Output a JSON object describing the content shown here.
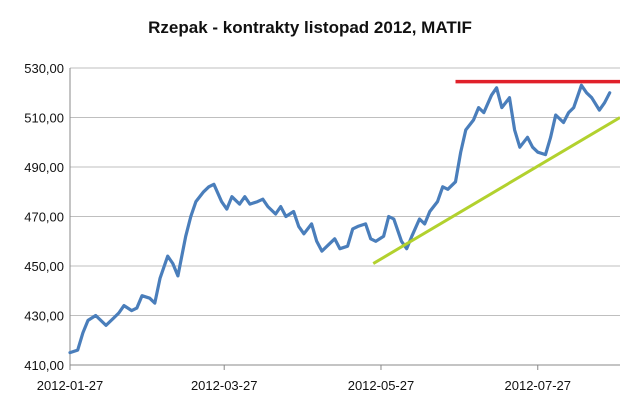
{
  "chart_data": {
    "type": "line",
    "title": "Rzepak - kontrakty listopad 2012, MATIF",
    "xlabel": "",
    "ylabel": "",
    "ylim": [
      410,
      530
    ],
    "yticks": [
      "410,00",
      "430,00",
      "450,00",
      "470,00",
      "490,00",
      "510,00",
      "530,00"
    ],
    "ytick_values": [
      410,
      430,
      450,
      470,
      490,
      510,
      530
    ],
    "xticks": [
      "2012-01-27",
      "2012-03-27",
      "2012-05-27",
      "2012-07-27"
    ],
    "xtick_dates": [
      "2012-01-27",
      "2012-03-27",
      "2012-05-27",
      "2012-07-27"
    ],
    "xlim": [
      "2012-01-27",
      "2012-08-28"
    ],
    "grid": "horizontal",
    "series": [
      {
        "color": "#4a7ebb",
        "points": [
          [
            "2012-01-27",
            415
          ],
          [
            "2012-01-30",
            416
          ],
          [
            "2012-02-01",
            423
          ],
          [
            "2012-02-03",
            428
          ],
          [
            "2012-02-06",
            430
          ],
          [
            "2012-02-08",
            428
          ],
          [
            "2012-02-10",
            426
          ],
          [
            "2012-02-13",
            429
          ],
          [
            "2012-02-15",
            431
          ],
          [
            "2012-02-17",
            434
          ],
          [
            "2012-02-20",
            432
          ],
          [
            "2012-02-22",
            433
          ],
          [
            "2012-02-24",
            438
          ],
          [
            "2012-02-27",
            437
          ],
          [
            "2012-02-29",
            435
          ],
          [
            "2012-03-02",
            445
          ],
          [
            "2012-03-05",
            454
          ],
          [
            "2012-03-07",
            451
          ],
          [
            "2012-03-09",
            446
          ],
          [
            "2012-03-12",
            462
          ],
          [
            "2012-03-14",
            470
          ],
          [
            "2012-03-16",
            476
          ],
          [
            "2012-03-19",
            480
          ],
          [
            "2012-03-21",
            482
          ],
          [
            "2012-03-23",
            483
          ],
          [
            "2012-03-26",
            476
          ],
          [
            "2012-03-28",
            473
          ],
          [
            "2012-03-30",
            478
          ],
          [
            "2012-04-02",
            475
          ],
          [
            "2012-04-04",
            478
          ],
          [
            "2012-04-06",
            475
          ],
          [
            "2012-04-09",
            476
          ],
          [
            "2012-04-11",
            477
          ],
          [
            "2012-04-13",
            474
          ],
          [
            "2012-04-16",
            471
          ],
          [
            "2012-04-18",
            474
          ],
          [
            "2012-04-20",
            470
          ],
          [
            "2012-04-23",
            472
          ],
          [
            "2012-04-25",
            466
          ],
          [
            "2012-04-27",
            463
          ],
          [
            "2012-04-30",
            467
          ],
          [
            "2012-05-02",
            460
          ],
          [
            "2012-05-04",
            456
          ],
          [
            "2012-05-07",
            459
          ],
          [
            "2012-05-09",
            461
          ],
          [
            "2012-05-11",
            457
          ],
          [
            "2012-05-14",
            458
          ],
          [
            "2012-05-16",
            465
          ],
          [
            "2012-05-18",
            466
          ],
          [
            "2012-05-21",
            467
          ],
          [
            "2012-05-23",
            461
          ],
          [
            "2012-05-25",
            460
          ],
          [
            "2012-05-28",
            462
          ],
          [
            "2012-05-30",
            470
          ],
          [
            "2012-06-01",
            469
          ],
          [
            "2012-06-04",
            460
          ],
          [
            "2012-06-06",
            457
          ],
          [
            "2012-06-08",
            462
          ],
          [
            "2012-06-11",
            469
          ],
          [
            "2012-06-13",
            467
          ],
          [
            "2012-06-15",
            472
          ],
          [
            "2012-06-18",
            476
          ],
          [
            "2012-06-20",
            482
          ],
          [
            "2012-06-22",
            481
          ],
          [
            "2012-06-25",
            484
          ],
          [
            "2012-06-27",
            496
          ],
          [
            "2012-06-29",
            505
          ],
          [
            "2012-07-02",
            509
          ],
          [
            "2012-07-04",
            514
          ],
          [
            "2012-07-06",
            512
          ],
          [
            "2012-07-09",
            519
          ],
          [
            "2012-07-11",
            522
          ],
          [
            "2012-07-13",
            514
          ],
          [
            "2012-07-16",
            518
          ],
          [
            "2012-07-18",
            505
          ],
          [
            "2012-07-20",
            498
          ],
          [
            "2012-07-23",
            502
          ],
          [
            "2012-07-25",
            498
          ],
          [
            "2012-07-27",
            496
          ],
          [
            "2012-07-30",
            495
          ],
          [
            "2012-08-01",
            502
          ],
          [
            "2012-08-03",
            511
          ],
          [
            "2012-08-06",
            508
          ],
          [
            "2012-08-08",
            512
          ],
          [
            "2012-08-10",
            514
          ],
          [
            "2012-08-13",
            523
          ],
          [
            "2012-08-15",
            520
          ],
          [
            "2012-08-17",
            518
          ],
          [
            "2012-08-20",
            513
          ],
          [
            "2012-08-22",
            516
          ],
          [
            "2012-08-24",
            520
          ]
        ]
      }
    ],
    "annotations": [
      {
        "type": "resistance-line",
        "color": "#e0202a",
        "from": [
          "2012-06-25",
          524.5
        ],
        "to": [
          "2012-08-28",
          524.5
        ]
      },
      {
        "type": "support-line",
        "color": "#b2d12e",
        "from": [
          "2012-05-24",
          451
        ],
        "to": [
          "2012-08-28",
          510
        ]
      }
    ]
  }
}
